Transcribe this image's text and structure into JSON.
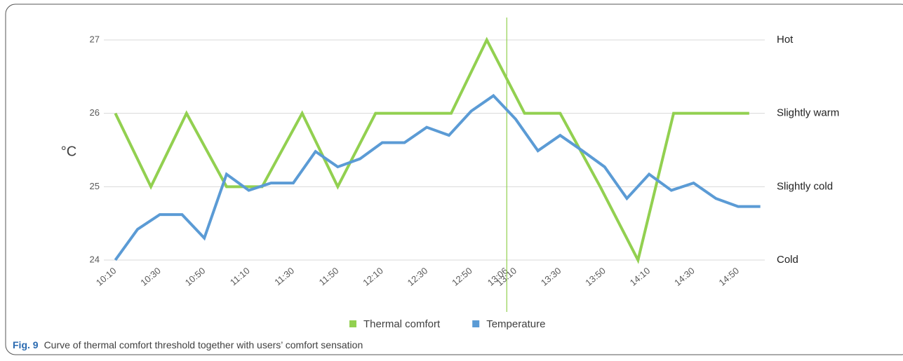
{
  "chart_data": {
    "type": "line",
    "ylabel": "°C",
    "ylim": [
      24,
      27
    ],
    "yticks": [
      24,
      25,
      26,
      27
    ],
    "grid": true,
    "y2lim": [
      24,
      27
    ],
    "y2ticks": [
      {
        "value": 24,
        "label": "Cold"
      },
      {
        "value": 25,
        "label": "Slightly cold"
      },
      {
        "value": 26,
        "label": "Slightly warm"
      },
      {
        "value": 27,
        "label": "Hot"
      }
    ],
    "xlim": [
      596,
      902
    ],
    "xticks": [
      {
        "value": 610,
        "label": "10:10"
      },
      {
        "value": 630,
        "label": "10:30"
      },
      {
        "value": 650,
        "label": "10:50"
      },
      {
        "value": 670,
        "label": "11:10"
      },
      {
        "value": 690,
        "label": "11:30"
      },
      {
        "value": 710,
        "label": "11:50"
      },
      {
        "value": 730,
        "label": "12:10"
      },
      {
        "value": 750,
        "label": "12:30"
      },
      {
        "value": 770,
        "label": "12:50"
      },
      {
        "value": 786,
        "label": "13:06"
      },
      {
        "value": 790,
        "label": "13:10"
      },
      {
        "value": 810,
        "label": "13:30"
      },
      {
        "value": 830,
        "label": "13:50"
      },
      {
        "value": 850,
        "label": "14:10"
      },
      {
        "value": 870,
        "label": "14:30"
      },
      {
        "value": 890,
        "label": "14:50"
      }
    ],
    "marker_line": {
      "value": 786,
      "color": "#92d050"
    },
    "legend": "bottom",
    "series": [
      {
        "name": "Thermal comfort",
        "color": "#92d050",
        "x": [
          610,
          626,
          642,
          660,
          676,
          694,
          710,
          727,
          744,
          761,
          777,
          794,
          810,
          828,
          845,
          861,
          878,
          895
        ],
        "values": [
          26,
          25,
          26,
          25,
          25,
          26,
          25,
          26,
          26,
          26,
          27,
          26,
          26,
          25,
          24,
          26,
          26,
          26
        ]
      },
      {
        "name": "Temperature",
        "color": "#5b9bd5",
        "x": [
          610,
          620,
          630,
          640,
          650,
          660,
          670,
          680,
          690,
          700,
          710,
          720,
          730,
          740,
          750,
          760,
          770,
          780,
          790,
          800,
          810,
          820,
          830,
          840,
          850,
          860,
          870,
          880,
          890,
          900
        ],
        "values": [
          24,
          24.42,
          24.62,
          24.62,
          24.3,
          25.17,
          24.95,
          25.05,
          25.05,
          25.48,
          25.27,
          25.38,
          25.6,
          25.6,
          25.81,
          25.7,
          26.03,
          26.24,
          25.92,
          25.49,
          25.7,
          25.49,
          25.27,
          24.84,
          25.17,
          24.95,
          25.05,
          24.84,
          24.73,
          24.73
        ]
      }
    ]
  },
  "caption": {
    "label": "Fig. 9",
    "text": "Curve of thermal comfort threshold together with users’ comfort sensation"
  }
}
